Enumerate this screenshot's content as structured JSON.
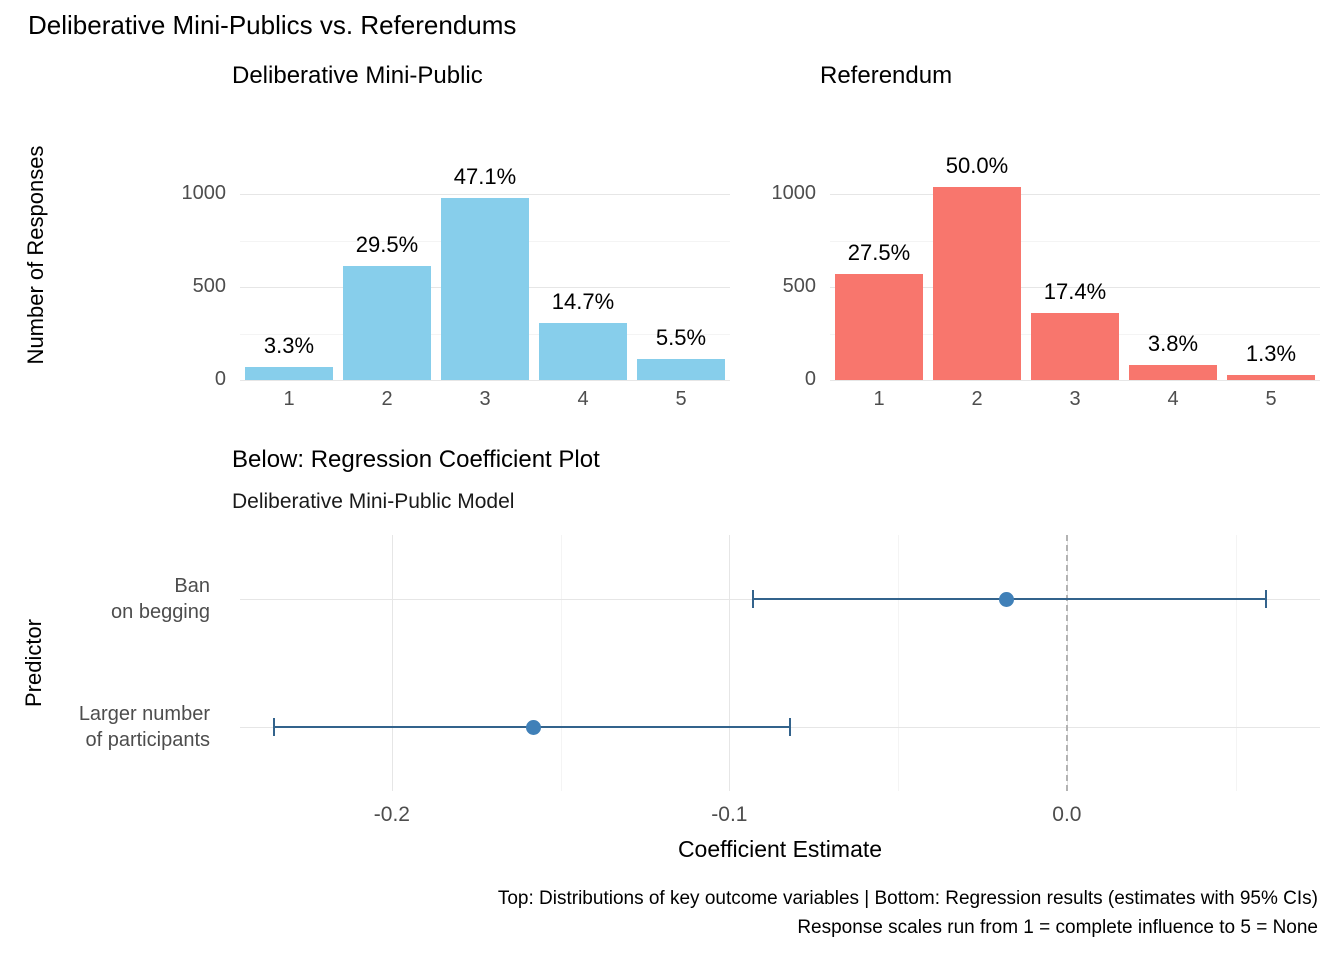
{
  "title": "Deliberative Mini-Publics vs. Referendums",
  "section": {
    "heading": "Below: Regression Coefficient Plot"
  },
  "caption": {
    "line1": "Top: Distributions of key outcome variables | Bottom: Regression results (estimates with 95% CIs)",
    "line2": "Response scales run from 1 = complete influence to 5 = None"
  },
  "chart_data": [
    {
      "type": "bar",
      "title": "Deliberative Mini-Public",
      "ylabel": "Number of Responses",
      "xlabel": "",
      "categories": [
        "1",
        "2",
        "3",
        "4",
        "5"
      ],
      "values": [
        69,
        614,
        980,
        306,
        114
      ],
      "percent_labels": [
        "3.3%",
        "29.5%",
        "47.1%",
        "14.7%",
        "5.5%"
      ],
      "bar_color": "#87CEEB",
      "yticks": [
        0,
        500,
        1000
      ],
      "yticks_minor": [
        250,
        750
      ],
      "ylim": [
        0,
        1250
      ],
      "grid": true
    },
    {
      "type": "bar",
      "title": "Referendum",
      "ylabel": "Number of Responses",
      "xlabel": "",
      "categories": [
        "1",
        "2",
        "3",
        "4",
        "5"
      ],
      "values": [
        572,
        1040,
        362,
        79,
        27
      ],
      "percent_labels": [
        "27.5%",
        "50.0%",
        "17.4%",
        "3.8%",
        "1.3%"
      ],
      "bar_color": "#F8766D",
      "yticks": [
        0,
        500,
        1000
      ],
      "yticks_minor": [
        250,
        750
      ],
      "ylim": [
        0,
        1250
      ],
      "grid": true
    },
    {
      "type": "scatter",
      "subtype": "coefficient-pointrange-95ci",
      "title": "Deliberative Mini-Public Model",
      "xlabel": "Coefficient Estimate",
      "ylabel": "Predictor",
      "xticks": [
        -0.2,
        -0.1,
        0
      ],
      "xticks_minor": [
        -0.15,
        -0.05,
        0.05
      ],
      "xlim": [
        -0.245,
        0.075
      ],
      "zero_line": 0,
      "point_color": "#4080B8",
      "line_color": "#33638C",
      "rows": [
        {
          "label": "Ban on begging",
          "label_lines": [
            "Ban",
            "on begging"
          ],
          "estimate": -0.018,
          "ci_low": -0.093,
          "ci_high": 0.059
        },
        {
          "label": "Larger number of participants",
          "label_lines": [
            "Larger number",
            "of participants"
          ],
          "estimate": -0.158,
          "ci_low": -0.235,
          "ci_high": -0.082
        }
      ],
      "grid": true,
      "legend": "none"
    }
  ]
}
